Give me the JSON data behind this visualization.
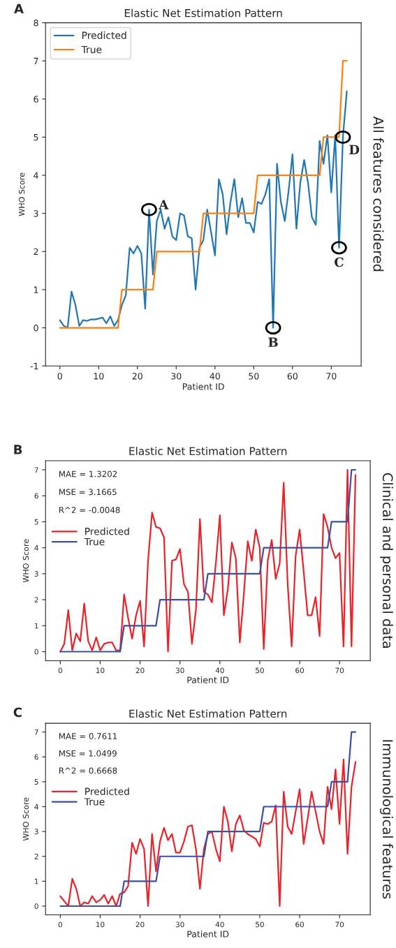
{
  "chart_data": [
    {
      "type": "line",
      "title": "Elastic Net Estimation Pattern",
      "xlabel": "Patient ID",
      "ylabel": "WHO Score",
      "x": [
        0,
        1,
        2,
        3,
        4,
        5,
        6,
        7,
        8,
        9,
        10,
        11,
        12,
        13,
        14,
        15,
        16,
        17,
        18,
        19,
        20,
        21,
        22,
        23,
        24,
        25,
        26,
        27,
        28,
        29,
        30,
        31,
        32,
        33,
        34,
        35,
        36,
        37,
        38,
        39,
        40,
        41,
        42,
        43,
        44,
        45,
        46,
        47,
        48,
        49,
        50,
        51,
        52,
        53,
        54,
        55,
        56,
        57,
        58,
        59,
        60,
        61,
        62,
        63,
        64,
        65,
        66,
        67,
        68,
        69,
        70,
        71,
        72,
        73,
        74
      ],
      "series": [
        {
          "name": "Predicted",
          "color": "#1f77b4",
          "values": [
            0.2,
            0.05,
            0,
            0.95,
            0.6,
            0.05,
            0.2,
            0.18,
            0.22,
            0.22,
            0.24,
            0.27,
            0.12,
            0.3,
            0.05,
            0.2,
            0.6,
            0.85,
            2.1,
            1.95,
            2.15,
            1.95,
            0.5,
            3.1,
            1.4,
            2.8,
            3.1,
            2.6,
            2.9,
            2.4,
            2.3,
            3.0,
            2.95,
            2.4,
            2.35,
            1.0,
            2.1,
            2.3,
            3.1,
            2.5,
            1.9,
            3.9,
            3.5,
            2.45,
            3.3,
            3.9,
            2.9,
            3.4,
            2.75,
            2.75,
            2.5,
            3.3,
            3.25,
            3.5,
            3.9,
            0.0,
            4.3,
            3.3,
            2.8,
            3.6,
            4.55,
            2.6,
            3.8,
            4.4,
            3.8,
            2.9,
            2.7,
            4.9,
            4.3,
            5.05,
            3.55,
            5.05,
            2.1,
            5.0,
            6.2
          ]
        },
        {
          "name": "True",
          "color": "#ff7f0e",
          "values": [
            0,
            0,
            0,
            0,
            0,
            0,
            0,
            0,
            0,
            0,
            0,
            0,
            0,
            0,
            0,
            0,
            1,
            1,
            1,
            1,
            1,
            1,
            1,
            1,
            1,
            2,
            2,
            2,
            2,
            2,
            2,
            2,
            2,
            2,
            2,
            2,
            2,
            3,
            3,
            3,
            3,
            3,
            3,
            3,
            3,
            3,
            3,
            3,
            3,
            3,
            3,
            4,
            4,
            4,
            4,
            4,
            4,
            4,
            4,
            4,
            4,
            4,
            4,
            4,
            4,
            4,
            4,
            4,
            5,
            5,
            5,
            5,
            5,
            7,
            7
          ]
        }
      ],
      "xlim": [
        -3.7,
        77.7
      ],
      "xticks": [
        0,
        10,
        20,
        30,
        40,
        50,
        60,
        70
      ],
      "ylim": [
        -1,
        8
      ],
      "yticks": [
        -1,
        0,
        1,
        2,
        3,
        4,
        5,
        6,
        7,
        8
      ],
      "legend": "top left",
      "annotations": [
        "A",
        "All features considered",
        {
          "text": "A",
          "x": 23,
          "y": 3.1
        },
        {
          "text": "B",
          "x": 55,
          "y": 0
        },
        {
          "text": "C",
          "x": 72,
          "y": 2.1
        },
        {
          "text": "D",
          "x": 73,
          "y": 5
        }
      ]
    },
    {
      "type": "line",
      "title": "Elastic Net Estimation Pattern",
      "xlabel": "Patient ID",
      "ylabel": "WHO Score",
      "x": [
        0,
        1,
        2,
        3,
        4,
        5,
        6,
        7,
        8,
        9,
        10,
        11,
        12,
        13,
        14,
        15,
        16,
        17,
        18,
        19,
        20,
        21,
        22,
        23,
        24,
        25,
        26,
        27,
        28,
        29,
        30,
        31,
        32,
        33,
        34,
        35,
        36,
        37,
        38,
        39,
        40,
        41,
        42,
        43,
        44,
        45,
        46,
        47,
        48,
        49,
        50,
        51,
        52,
        53,
        54,
        55,
        56,
        57,
        58,
        59,
        60,
        61,
        62,
        63,
        64,
        65,
        66,
        67,
        68,
        69,
        70,
        71,
        72,
        73,
        74
      ],
      "series": [
        {
          "name": "Predicted",
          "color": "#e8232a",
          "values": [
            0,
            0.3,
            1.6,
            0.05,
            0.7,
            0.4,
            1.85,
            0.4,
            0.05,
            0.55,
            0.05,
            0.3,
            0.35,
            0.35,
            0.05,
            0.05,
            2.2,
            1.3,
            0.5,
            1.4,
            1.95,
            0.2,
            3.5,
            5.35,
            4.8,
            4.75,
            4.4,
            0,
            3.5,
            3.55,
            3.95,
            2.6,
            2.3,
            0.3,
            1.6,
            5.1,
            2.3,
            2.2,
            1.9,
            3.4,
            5.25,
            1.4,
            2.4,
            4.2,
            3.6,
            0.35,
            2.2,
            4.25,
            3.5,
            4.7,
            4.0,
            0.1,
            3.5,
            4.3,
            2.8,
            3.4,
            6.5,
            2.6,
            0.2,
            3.7,
            4.7,
            3.1,
            1.4,
            1.4,
            2.1,
            0.6,
            5.3,
            4.8,
            4.0,
            3.6,
            3.8,
            0.2,
            7.0,
            0.2,
            6.8
          ]
        },
        {
          "name": "True",
          "color": "#3a4fa6",
          "values": [
            0,
            0,
            0,
            0,
            0,
            0,
            0,
            0,
            0,
            0,
            0,
            0,
            0,
            0,
            0,
            0,
            1,
            1,
            1,
            1,
            1,
            1,
            1,
            1,
            1,
            2,
            2,
            2,
            2,
            2,
            2,
            2,
            2,
            2,
            2,
            2,
            2,
            3,
            3,
            3,
            3,
            3,
            3,
            3,
            3,
            3,
            3,
            3,
            3,
            3,
            3,
            4,
            4,
            4,
            4,
            4,
            4,
            4,
            4,
            4,
            4,
            4,
            4,
            4,
            4,
            4,
            4,
            4,
            5,
            5,
            5,
            5,
            5,
            7,
            7
          ]
        }
      ],
      "xlim": [
        -3.7,
        77.7
      ],
      "xticks": [
        0,
        10,
        20,
        30,
        40,
        50,
        60,
        70
      ],
      "ylim": [
        -0.35,
        7.35
      ],
      "yticks": [
        0,
        1,
        2,
        3,
        4,
        5,
        6,
        7
      ],
      "legend": "top left",
      "annotations": [
        "B",
        "Clinical and personal data",
        "MAE = 1.3202",
        "MSE = 3.1665",
        "R^2 = -0.0048"
      ]
    },
    {
      "type": "line",
      "title": "Elastic Net Estimation Pattern",
      "xlabel": "Patient ID",
      "ylabel": "WHO Score",
      "x": [
        0,
        1,
        2,
        3,
        4,
        5,
        6,
        7,
        8,
        9,
        10,
        11,
        12,
        13,
        14,
        15,
        16,
        17,
        18,
        19,
        20,
        21,
        22,
        23,
        24,
        25,
        26,
        27,
        28,
        29,
        30,
        31,
        32,
        33,
        34,
        35,
        36,
        37,
        38,
        39,
        40,
        41,
        42,
        43,
        44,
        45,
        46,
        47,
        48,
        49,
        50,
        51,
        52,
        53,
        54,
        55,
        56,
        57,
        58,
        59,
        60,
        61,
        62,
        63,
        64,
        65,
        66,
        67,
        68,
        69,
        70,
        71,
        72,
        73,
        74
      ],
      "series": [
        {
          "name": "Predicted",
          "color": "#e8232a",
          "values": [
            0.4,
            0.2,
            0,
            1.1,
            0.7,
            0,
            0.15,
            0.1,
            0.4,
            0.15,
            0.25,
            0.45,
            0.1,
            0.4,
            0,
            0.5,
            0.55,
            0.8,
            2.55,
            2.1,
            2.7,
            2.3,
            0,
            2.9,
            1.4,
            2.6,
            3.15,
            2.65,
            2.9,
            2.15,
            2.15,
            2.6,
            3.2,
            3.25,
            2.3,
            0.7,
            2.3,
            2.9,
            3.0,
            2.3,
            1.8,
            4.0,
            3.4,
            2.2,
            3.3,
            3.65,
            3.05,
            2.9,
            2.8,
            2.7,
            2.4,
            3.35,
            3.3,
            3.4,
            4.05,
            0,
            4.6,
            3.2,
            2.9,
            3.8,
            4.7,
            2.5,
            3.5,
            4.6,
            3.8,
            3.0,
            2.5,
            4.8,
            3.9,
            5.5,
            3.3,
            5.9,
            2.1,
            4.8,
            5.8
          ]
        },
        {
          "name": "True",
          "color": "#3a4fa6",
          "values": [
            0,
            0,
            0,
            0,
            0,
            0,
            0,
            0,
            0,
            0,
            0,
            0,
            0,
            0,
            0,
            0,
            1,
            1,
            1,
            1,
            1,
            1,
            1,
            1,
            1,
            2,
            2,
            2,
            2,
            2,
            2,
            2,
            2,
            2,
            2,
            2,
            2,
            3,
            3,
            3,
            3,
            3,
            3,
            3,
            3,
            3,
            3,
            3,
            3,
            3,
            3,
            4,
            4,
            4,
            4,
            4,
            4,
            4,
            4,
            4,
            4,
            4,
            4,
            4,
            4,
            4,
            4,
            4,
            5,
            5,
            5,
            5,
            5,
            7,
            7
          ]
        }
      ],
      "xlim": [
        -3.7,
        77.7
      ],
      "xticks": [
        0,
        10,
        20,
        30,
        40,
        50,
        60,
        70
      ],
      "ylim": [
        -0.35,
        7.35
      ],
      "yticks": [
        0,
        1,
        2,
        3,
        4,
        5,
        6,
        7
      ],
      "legend": "top left",
      "annotations": [
        "C",
        "Immunological features",
        "MAE = 0.7611",
        "MSE = 1.0499",
        "R^2 = 0.6668"
      ]
    }
  ]
}
